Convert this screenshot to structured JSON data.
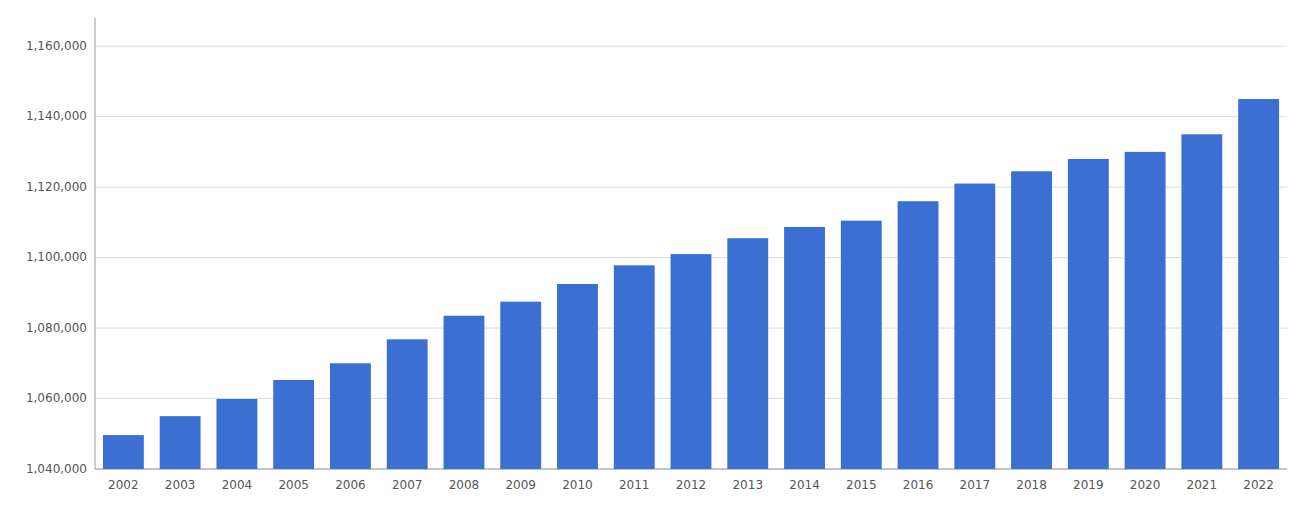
{
  "chart_data": {
    "type": "bar",
    "categories": [
      "2002",
      "2003",
      "2004",
      "2005",
      "2006",
      "2007",
      "2008",
      "2009",
      "2010",
      "2011",
      "2012",
      "2013",
      "2014",
      "2015",
      "2016",
      "2017",
      "2018",
      "2019",
      "2020",
      "2021",
      "2022"
    ],
    "values": [
      1049624,
      1055005,
      1059874,
      1065269,
      1070000,
      1076800,
      1083500,
      1087500,
      1092500,
      1097800,
      1101000,
      1105500,
      1108700,
      1110500,
      1116000,
      1121000,
      1124500,
      1128000,
      1130000,
      1135000,
      1145000
    ],
    "color": "#3b6fd4",
    "ylim": [
      1040000,
      1168000
    ],
    "yticks": [
      {
        "value": 1040000,
        "label": "1,040,000"
      },
      {
        "value": 1060000,
        "label": "1,060,000"
      },
      {
        "value": 1080000,
        "label": "1,080,000"
      },
      {
        "value": 1100000,
        "label": "1,100,000"
      },
      {
        "value": 1120000,
        "label": "1,120,000"
      },
      {
        "value": 1140000,
        "label": "1,140,000"
      },
      {
        "value": 1160000,
        "label": "1,160,000"
      }
    ],
    "grid": true
  }
}
